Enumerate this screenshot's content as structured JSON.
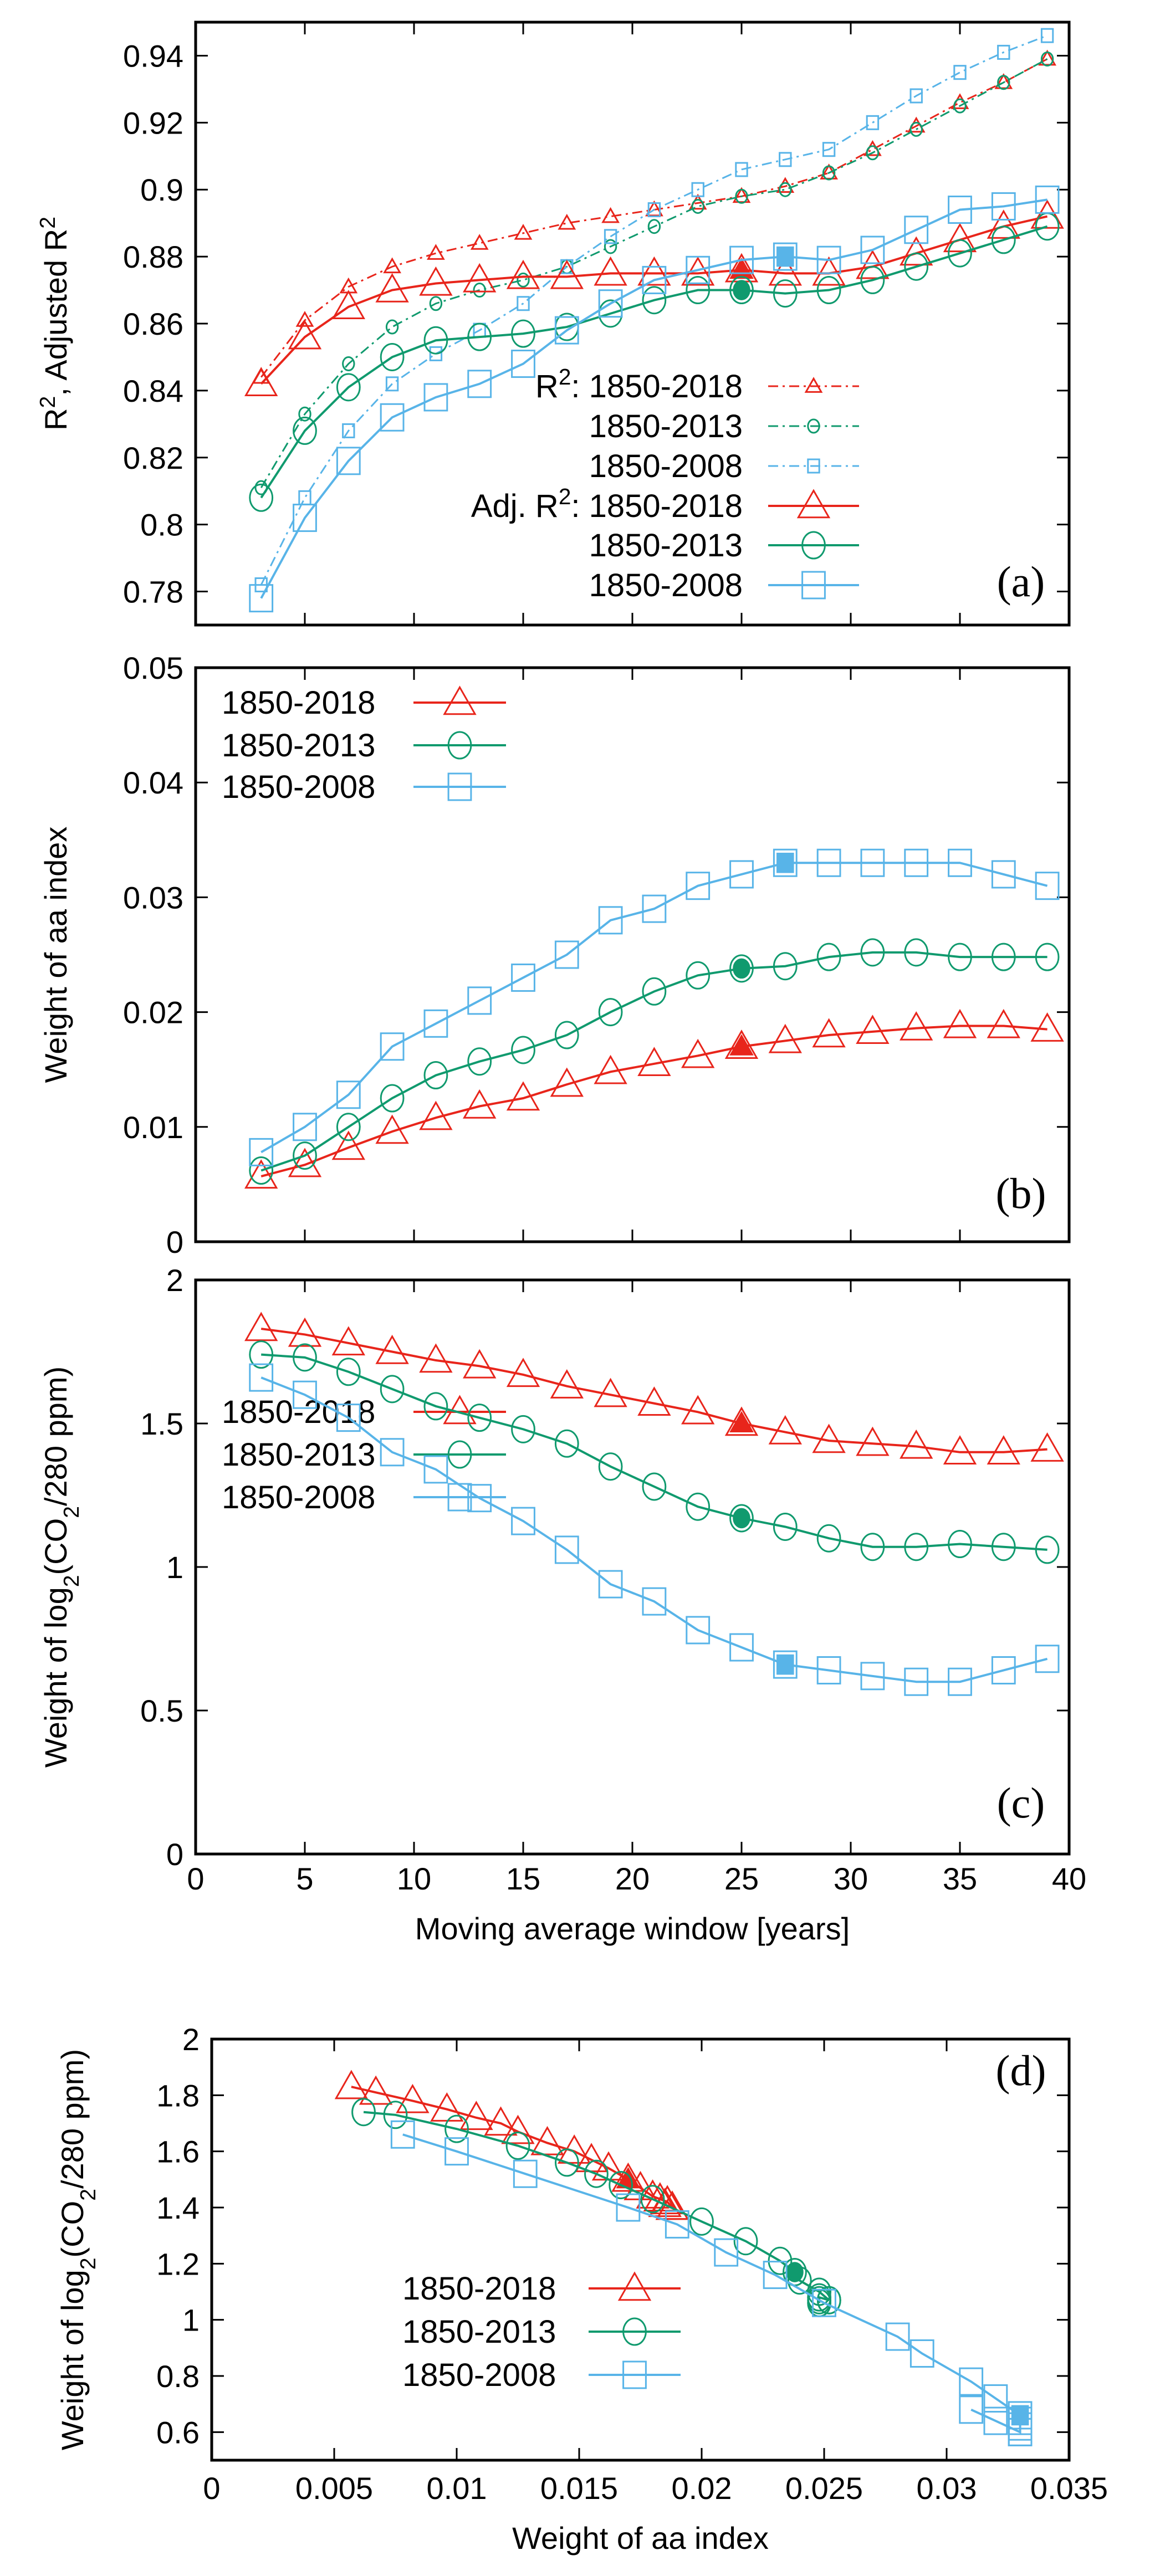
{
  "colors": {
    "s2018": "#e8251b",
    "s2013": "#109a6e",
    "s2008": "#58b4e8"
  },
  "chart_data": [
    {
      "id": "a",
      "type": "line",
      "panel_label": "(a)",
      "ylabel_parts": [
        {
          "t": "R"
        },
        {
          "t": "2",
          "sup": true
        },
        {
          "t": ", Adjusted R"
        },
        {
          "t": "2",
          "sup": true
        }
      ],
      "xlim": [
        0,
        40
      ],
      "ylim": [
        0.77,
        0.95
      ],
      "xticks": [
        0,
        5,
        10,
        15,
        20,
        25,
        30,
        35,
        40
      ],
      "xtick_labels": [],
      "yticks": [
        0.78,
        0.8,
        0.82,
        0.84,
        0.86,
        0.88,
        0.9,
        0.92,
        0.94
      ],
      "ytick_labels": [
        "0.78",
        "0.8",
        "0.82",
        "0.84",
        "0.86",
        "0.88",
        "0.9",
        "0.92",
        "0.94"
      ],
      "legend_placement": "bottom-right",
      "x": [
        3,
        5,
        7,
        9,
        11,
        13,
        15,
        17,
        19,
        21,
        23,
        25,
        27,
        29,
        31,
        33,
        35,
        37,
        39
      ],
      "series": [
        {
          "prefix": "R",
          "prefix_sup": "2",
          "prefix_after": ": ",
          "name": "1850-2018",
          "color_key": "s2018",
          "marker": "triangle",
          "size": "small",
          "dash": "dashdot",
          "highlight_x": null,
          "values": [
            0.844,
            0.861,
            0.871,
            0.877,
            0.881,
            0.884,
            0.887,
            0.89,
            0.892,
            0.894,
            0.896,
            0.898,
            0.901,
            0.905,
            0.912,
            0.919,
            0.926,
            0.932,
            0.939
          ]
        },
        {
          "name": "1850-2013",
          "color_key": "s2013",
          "marker": "circle",
          "size": "small",
          "dash": "dashdot",
          "highlight_x": null,
          "values": [
            0.811,
            0.833,
            0.848,
            0.859,
            0.866,
            0.87,
            0.873,
            0.877,
            0.883,
            0.889,
            0.895,
            0.898,
            0.9,
            0.905,
            0.911,
            0.918,
            0.925,
            0.932,
            0.939
          ]
        },
        {
          "name": "1850-2008",
          "color_key": "s2008",
          "marker": "square",
          "size": "small",
          "dash": "dashdot",
          "highlight_x": null,
          "values": [
            0.782,
            0.808,
            0.828,
            0.842,
            0.851,
            0.858,
            0.866,
            0.877,
            0.886,
            0.894,
            0.9,
            0.906,
            0.909,
            0.912,
            0.92,
            0.928,
            0.935,
            0.941,
            0.946
          ]
        },
        {
          "prefix": "Adj. R",
          "prefix_sup": "2",
          "prefix_after": ": ",
          "name": "1850-2018",
          "color_key": "s2018",
          "marker": "triangle",
          "size": "large",
          "dash": "solid",
          "highlight_x": 25,
          "values": [
            0.842,
            0.856,
            0.865,
            0.87,
            0.872,
            0.873,
            0.874,
            0.874,
            0.875,
            0.875,
            0.875,
            0.876,
            0.875,
            0.875,
            0.877,
            0.881,
            0.885,
            0.889,
            0.892
          ]
        },
        {
          "name": "1850-2013",
          "color_key": "s2013",
          "marker": "circle",
          "size": "large",
          "dash": "solid",
          "highlight_x": 25,
          "values": [
            0.808,
            0.828,
            0.841,
            0.85,
            0.855,
            0.856,
            0.857,
            0.859,
            0.863,
            0.867,
            0.87,
            0.87,
            0.869,
            0.87,
            0.873,
            0.877,
            0.881,
            0.885,
            0.889
          ]
        },
        {
          "name": "1850-2008",
          "color_key": "s2008",
          "marker": "square",
          "size": "large",
          "dash": "solid",
          "highlight_x": 27,
          "values": [
            0.778,
            0.802,
            0.819,
            0.832,
            0.838,
            0.842,
            0.848,
            0.858,
            0.866,
            0.873,
            0.876,
            0.879,
            0.88,
            0.879,
            0.882,
            0.888,
            0.894,
            0.895,
            0.897
          ]
        }
      ]
    },
    {
      "id": "b",
      "type": "line",
      "panel_label": "(b)",
      "ylabel_parts": [
        {
          "t": "Weight of aa index"
        }
      ],
      "xlim": [
        0,
        40
      ],
      "ylim": [
        0,
        0.05
      ],
      "xticks": [
        0,
        5,
        10,
        15,
        20,
        25,
        30,
        35,
        40
      ],
      "xtick_labels": [],
      "yticks": [
        0,
        0.01,
        0.02,
        0.03,
        0.04,
        0.05
      ],
      "ytick_labels": [
        "0",
        "0.01",
        "0.02",
        "0.03",
        "0.04",
        "0.05"
      ],
      "legend_placement": "top-left",
      "x": [
        3,
        5,
        7,
        9,
        11,
        13,
        15,
        17,
        19,
        21,
        23,
        25,
        27,
        29,
        31,
        33,
        35,
        37,
        39
      ],
      "series": [
        {
          "name": "1850-2018",
          "color_key": "s2018",
          "marker": "triangle",
          "size": "large",
          "dash": "solid",
          "highlight_x": 25,
          "values": [
            0.0057,
            0.0067,
            0.0082,
            0.0096,
            0.0108,
            0.0118,
            0.0125,
            0.0137,
            0.0148,
            0.0155,
            0.0162,
            0.017,
            0.0175,
            0.018,
            0.0183,
            0.0186,
            0.0188,
            0.0188,
            0.0185
          ]
        },
        {
          "name": "1850-2013",
          "color_key": "s2013",
          "marker": "circle",
          "size": "large",
          "dash": "solid",
          "highlight_x": 25,
          "values": [
            0.0062,
            0.0075,
            0.01,
            0.0125,
            0.0145,
            0.0157,
            0.0167,
            0.018,
            0.02,
            0.0218,
            0.0232,
            0.0238,
            0.024,
            0.0248,
            0.0252,
            0.0252,
            0.0248,
            0.0248,
            0.0248
          ]
        },
        {
          "name": "1850-2008",
          "color_key": "s2008",
          "marker": "square",
          "size": "large",
          "dash": "solid",
          "highlight_x": 27,
          "values": [
            0.0078,
            0.01,
            0.0128,
            0.017,
            0.019,
            0.021,
            0.023,
            0.025,
            0.028,
            0.029,
            0.031,
            0.032,
            0.033,
            0.033,
            0.033,
            0.033,
            0.033,
            0.032,
            0.031
          ]
        }
      ]
    },
    {
      "id": "c",
      "type": "line",
      "panel_label": "(c)",
      "ylabel_parts": [
        {
          "t": "Weight of log"
        },
        {
          "t": "2",
          "sub": true
        },
        {
          "t": "(CO"
        },
        {
          "t": "2",
          "sub": true
        },
        {
          "t": "/280 ppm)"
        }
      ],
      "xlabel": "Moving average window [years]",
      "xlim": [
        0,
        40
      ],
      "ylim": [
        0,
        2
      ],
      "xticks": [
        0,
        5,
        10,
        15,
        20,
        25,
        30,
        35,
        40
      ],
      "xtick_labels": [
        "0",
        "5",
        "10",
        "15",
        "20",
        "25",
        "30",
        "35",
        "40"
      ],
      "yticks": [
        0,
        0.5,
        1,
        1.5,
        2
      ],
      "ytick_labels": [
        "0",
        "0.5",
        "1",
        "1.5",
        "2"
      ],
      "legend_placement": "bottom-left",
      "x": [
        3,
        5,
        7,
        9,
        11,
        13,
        15,
        17,
        19,
        21,
        23,
        25,
        27,
        29,
        31,
        33,
        35,
        37,
        39
      ],
      "series": [
        {
          "name": "1850-2018",
          "color_key": "s2018",
          "marker": "triangle",
          "size": "large",
          "dash": "solid",
          "highlight_x": 25,
          "values": [
            1.83,
            1.81,
            1.78,
            1.75,
            1.72,
            1.7,
            1.67,
            1.63,
            1.6,
            1.57,
            1.54,
            1.5,
            1.47,
            1.44,
            1.43,
            1.42,
            1.4,
            1.4,
            1.41
          ]
        },
        {
          "name": "1850-2013",
          "color_key": "s2013",
          "marker": "circle",
          "size": "large",
          "dash": "solid",
          "highlight_x": 25,
          "values": [
            1.74,
            1.73,
            1.68,
            1.62,
            1.56,
            1.52,
            1.48,
            1.43,
            1.35,
            1.28,
            1.21,
            1.17,
            1.14,
            1.1,
            1.07,
            1.07,
            1.08,
            1.07,
            1.06
          ]
        },
        {
          "name": "1850-2008",
          "color_key": "s2008",
          "marker": "square",
          "size": "large",
          "dash": "solid",
          "highlight_x": 27,
          "values": [
            1.66,
            1.6,
            1.52,
            1.4,
            1.34,
            1.24,
            1.16,
            1.06,
            0.94,
            0.88,
            0.78,
            0.72,
            0.66,
            0.64,
            0.62,
            0.6,
            0.6,
            0.64,
            0.68
          ]
        }
      ]
    },
    {
      "id": "d",
      "type": "line",
      "panel_label": "(d)",
      "ylabel_parts": [
        {
          "t": "Weight of log"
        },
        {
          "t": "2",
          "sub": true
        },
        {
          "t": "(CO"
        },
        {
          "t": "2",
          "sub": true
        },
        {
          "t": "/280 ppm)"
        }
      ],
      "xlabel": "Weight of aa index",
      "xlim": [
        0,
        0.035
      ],
      "ylim": [
        0.5,
        2
      ],
      "xticks": [
        0,
        0.005,
        0.01,
        0.015,
        0.02,
        0.025,
        0.03,
        0.035
      ],
      "xtick_labels": [
        "0",
        "0.005",
        "0.01",
        "0.015",
        "0.02",
        "0.025",
        "0.03",
        "0.035"
      ],
      "yticks": [
        0.6,
        0.8,
        1,
        1.2,
        1.4,
        1.6,
        1.8,
        2
      ],
      "ytick_labels": [
        "0.6",
        "0.8",
        "1",
        "1.2",
        "1.4",
        "1.6",
        "1.8",
        "2"
      ],
      "legend_placement": "bottom-left",
      "series": [
        {
          "name": "1850-2018",
          "color_key": "s2018",
          "marker": "triangle",
          "size": "large",
          "dash": "solid",
          "highlight_index": 11,
          "x": [
            0.0057,
            0.0067,
            0.0082,
            0.0096,
            0.0108,
            0.0118,
            0.0125,
            0.0137,
            0.0148,
            0.0155,
            0.0162,
            0.017,
            0.0175,
            0.018,
            0.0183,
            0.0186,
            0.0188,
            0.0188,
            0.0185
          ],
          "values": [
            1.83,
            1.81,
            1.78,
            1.75,
            1.72,
            1.7,
            1.67,
            1.63,
            1.6,
            1.57,
            1.54,
            1.5,
            1.47,
            1.44,
            1.43,
            1.42,
            1.4,
            1.4,
            1.41
          ]
        },
        {
          "name": "1850-2013",
          "color_key": "s2013",
          "marker": "circle",
          "size": "large",
          "dash": "solid",
          "highlight_index": 11,
          "x": [
            0.0062,
            0.0075,
            0.01,
            0.0125,
            0.0145,
            0.0157,
            0.0167,
            0.018,
            0.02,
            0.0218,
            0.0232,
            0.0238,
            0.024,
            0.0248,
            0.0252,
            0.0252,
            0.0248,
            0.0248,
            0.0248
          ],
          "values": [
            1.74,
            1.73,
            1.68,
            1.62,
            1.56,
            1.52,
            1.48,
            1.43,
            1.35,
            1.28,
            1.21,
            1.17,
            1.14,
            1.1,
            1.07,
            1.07,
            1.08,
            1.07,
            1.06
          ]
        },
        {
          "name": "1850-2008",
          "color_key": "s2008",
          "marker": "square",
          "size": "large",
          "dash": "solid",
          "highlight_index": 12,
          "x": [
            0.0078,
            0.01,
            0.0128,
            0.017,
            0.019,
            0.021,
            0.023,
            0.025,
            0.028,
            0.029,
            0.031,
            0.032,
            0.033,
            0.033,
            0.033,
            0.033,
            0.033,
            0.032,
            0.031
          ],
          "values": [
            1.66,
            1.6,
            1.52,
            1.4,
            1.34,
            1.24,
            1.16,
            1.06,
            0.94,
            0.88,
            0.78,
            0.72,
            0.66,
            0.64,
            0.62,
            0.6,
            0.6,
            0.64,
            0.68
          ]
        }
      ]
    }
  ]
}
